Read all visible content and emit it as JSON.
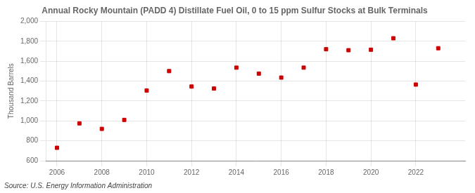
{
  "chart_data": {
    "type": "scatter",
    "title": "Annual Rocky Mountain (PADD 4) Distillate Fuel Oil, 0 to 15 ppm Sulfur Stocks at Bulk Terminals",
    "ylabel": "Thousand Barrels",
    "source": "Source: U.S. Energy Information Administration",
    "x": [
      2006,
      2007,
      2008,
      2009,
      2010,
      2011,
      2012,
      2013,
      2014,
      2015,
      2016,
      2017,
      2018,
      2019,
      2020,
      2021,
      2022,
      2023
    ],
    "values": [
      730,
      975,
      920,
      1010,
      1305,
      1500,
      1345,
      1325,
      1535,
      1475,
      1435,
      1535,
      1720,
      1710,
      1715,
      1830,
      1365,
      1730
    ],
    "color": "#cc0000",
    "marker": "square",
    "xlim": [
      2005.5,
      2024.2
    ],
    "xticks": [
      2006,
      2008,
      2010,
      2012,
      2014,
      2016,
      2018,
      2020,
      2022
    ],
    "ylim": [
      600,
      2000
    ],
    "yticks": [
      600,
      800,
      {
        "value": 1000,
        "label": "1,000"
      },
      {
        "value": 1200,
        "label": "1,200"
      },
      {
        "value": 1400,
        "label": "1,400"
      },
      {
        "value": 1600,
        "label": "1,600"
      },
      {
        "value": 1800,
        "label": "1,800"
      },
      {
        "value": 2000,
        "label": "2,000"
      }
    ],
    "grid": true
  }
}
